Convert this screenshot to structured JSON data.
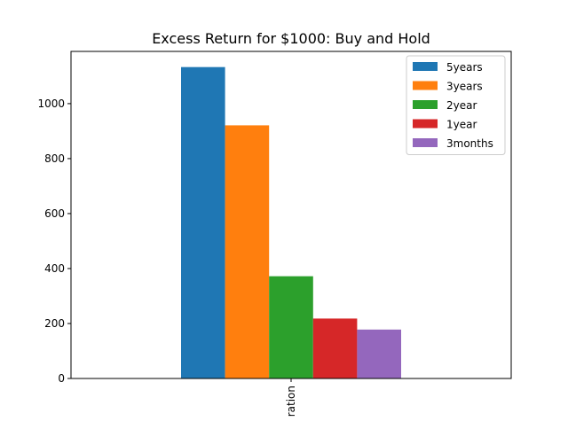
{
  "chart_data": {
    "type": "bar",
    "title": "Excess Return for $1000: Buy and Hold",
    "xlabel": "",
    "ylabel": "",
    "categories": [
      "ration"
    ],
    "series": [
      {
        "name": "5years",
        "values": [
          1133
        ],
        "color": "#1f77b4"
      },
      {
        "name": "3years",
        "values": [
          921
        ],
        "color": "#ff7f0e"
      },
      {
        "name": "2year",
        "values": [
          372
        ],
        "color": "#2ca02c"
      },
      {
        "name": "1year",
        "values": [
          218
        ],
        "color": "#d62728"
      },
      {
        "name": "3months",
        "values": [
          178
        ],
        "color": "#9467bd"
      }
    ],
    "ylim": [
      0,
      1190
    ],
    "yticks": [
      0,
      200,
      400,
      600,
      800,
      1000
    ],
    "grid": false,
    "legend_position": "top-right"
  }
}
